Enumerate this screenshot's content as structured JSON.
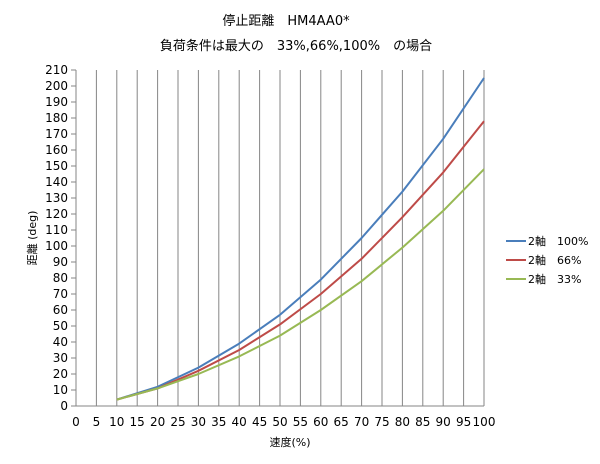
{
  "chart_data": {
    "type": "line",
    "title": "停止距離　HM4AA0*",
    "subtitle": "負荷条件は最大の　33%,66%,100%　の場合",
    "xlabel": "速度(%)",
    "ylabel": "距離 (deg)",
    "xlim": [
      0,
      100
    ],
    "ylim": [
      0,
      210
    ],
    "x_ticks": [
      0,
      5,
      10,
      15,
      20,
      25,
      30,
      35,
      40,
      45,
      50,
      55,
      60,
      65,
      70,
      75,
      80,
      85,
      90,
      95,
      100
    ],
    "y_ticks": [
      0,
      10,
      20,
      30,
      40,
      50,
      60,
      70,
      80,
      90,
      100,
      110,
      120,
      130,
      140,
      150,
      160,
      170,
      180,
      190,
      200,
      210
    ],
    "grid": "vertical",
    "legend_position": "right",
    "x": [
      10,
      20,
      30,
      40,
      50,
      60,
      70,
      80,
      90,
      100
    ],
    "series": [
      {
        "name": "2軸　100%",
        "color": "#4a7ebb",
        "values": [
          4,
          12,
          24,
          39,
          57,
          79,
          105,
          134,
          167,
          205
        ]
      },
      {
        "name": "2軸　66%",
        "color": "#be4b48",
        "values": [
          4,
          11,
          22,
          35,
          51,
          70,
          92,
          118,
          146,
          178
        ]
      },
      {
        "name": "2軸　33%",
        "color": "#98b954",
        "values": [
          4,
          11,
          20,
          31,
          44,
          60,
          78,
          99,
          122,
          148
        ]
      }
    ]
  }
}
